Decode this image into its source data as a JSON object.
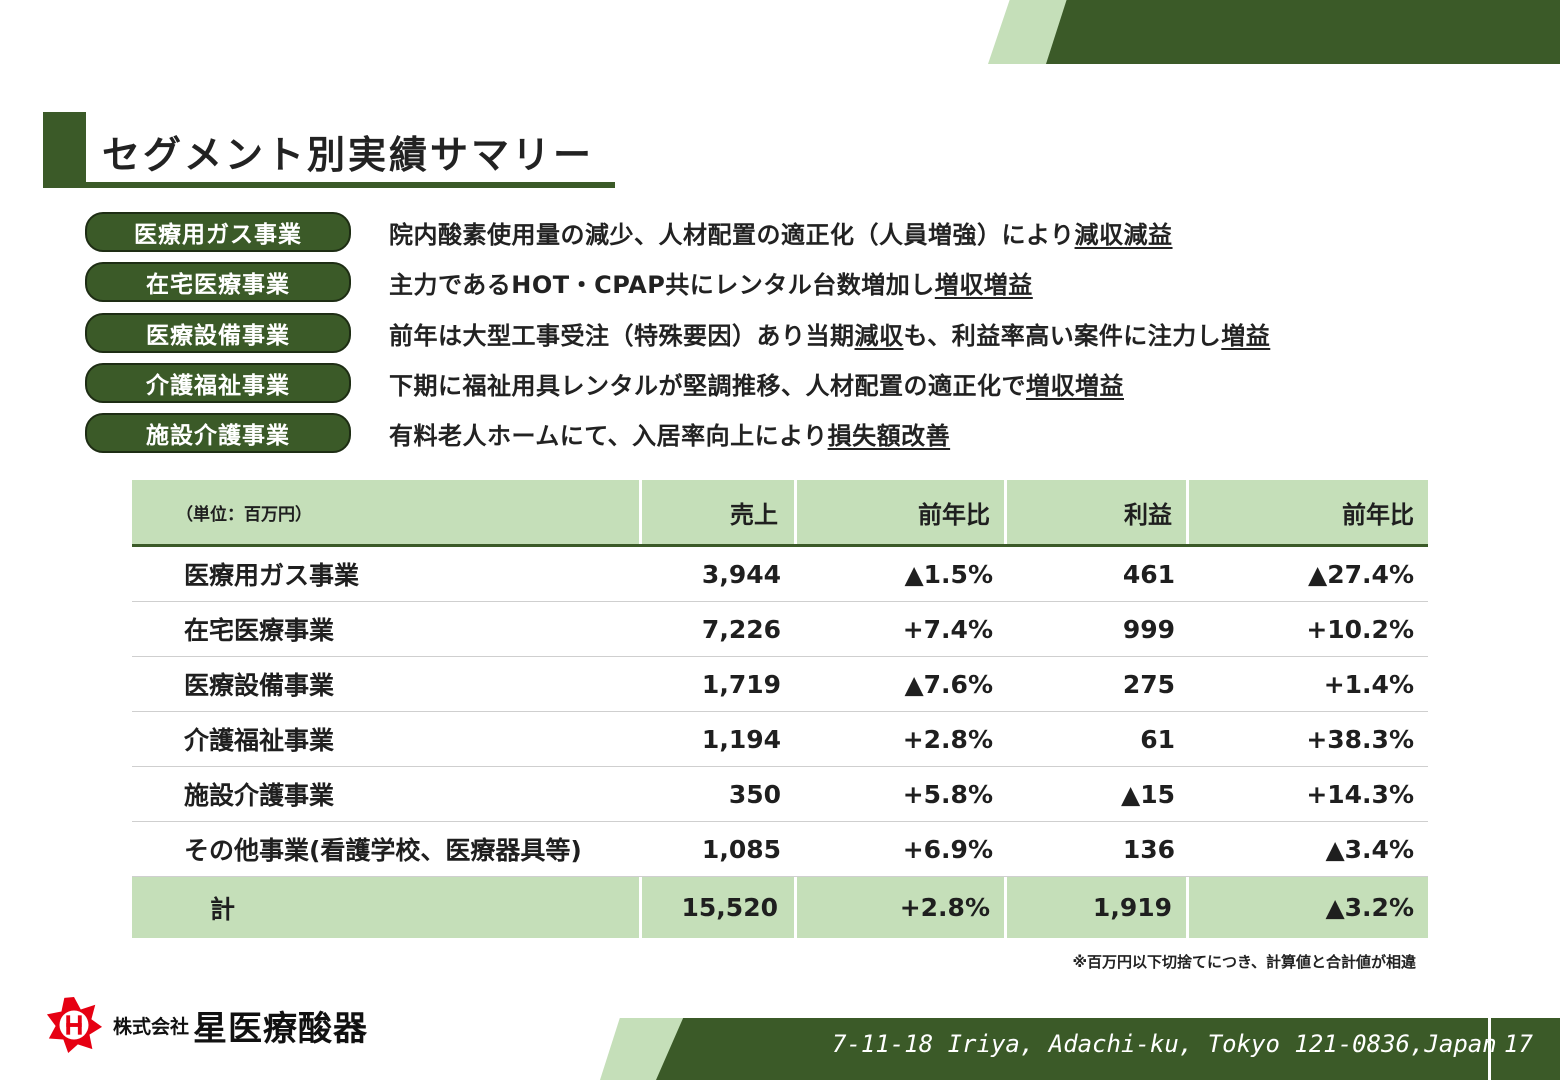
{
  "title": "セグメント別実績サマリー",
  "summary": [
    {
      "label": "医療用ガス事業",
      "text": "院内酸素使用量の減少、人材配置の適正化（人員増強）により",
      "highlight": "減収減益",
      "suffix": ""
    },
    {
      "label": "在宅医療事業",
      "text": "主力であるHOT・CPAP共にレンタル台数増加し",
      "highlight": "増収増益",
      "suffix": ""
    },
    {
      "label": "医療設備事業",
      "text": "前年は大型工事受注（特殊要因）あり当期",
      "highlight": "減収",
      "suffix": "も、利益率高い案件に注力し",
      "highlight2": "増益"
    },
    {
      "label": "介護福祉事業",
      "text": "下期に福祉用具レンタルが堅調推移、人材配置の適正化で",
      "highlight": "増収増益",
      "suffix": ""
    },
    {
      "label": "施設介護事業",
      "text": "有料老人ホームにて、入居率向上により",
      "highlight": "損失額改善",
      "suffix": ""
    }
  ],
  "table": {
    "unit": "（単位：百万円）",
    "headers": [
      "売上",
      "前年比",
      "利益",
      "前年比"
    ],
    "rows": [
      {
        "name": "医療用ガス事業",
        "sales": "3,944",
        "sales_yoy": "▲1.5%",
        "profit": "461",
        "profit_yoy": "▲27.4%"
      },
      {
        "name": "在宅医療事業",
        "sales": "7,226",
        "sales_yoy": "+7.4%",
        "profit": "999",
        "profit_yoy": "+10.2%"
      },
      {
        "name": "医療設備事業",
        "sales": "1,719",
        "sales_yoy": "▲7.6%",
        "profit": "275",
        "profit_yoy": "+1.4%"
      },
      {
        "name": "介護福祉事業",
        "sales": "1,194",
        "sales_yoy": "+2.8%",
        "profit": "61",
        "profit_yoy": "+38.3%"
      },
      {
        "name": "施設介護事業",
        "sales": "350",
        "sales_yoy": "+5.8%",
        "profit": "▲15",
        "profit_yoy": "+14.3%"
      },
      {
        "name": "その他事業(看護学校、医療器具等)",
        "sales": "1,085",
        "sales_yoy": "+6.9%",
        "profit": "136",
        "profit_yoy": "▲3.4%"
      }
    ],
    "total": {
      "name": "計",
      "sales": "15,520",
      "sales_yoy": "+2.8%",
      "profit": "1,919",
      "profit_yoy": "▲3.2%"
    }
  },
  "note": "※百万円以下切捨てにつき、計算値と合計値が相違",
  "footer": {
    "company_prefix": "株式会社",
    "company_name": "星医療酸器",
    "logo_letter": "H",
    "address": "7-11-18 Iriya, Adachi-ku, Tokyo 121-0836,Japan",
    "page": "17"
  },
  "colors": {
    "dark_green": "#3b5a28",
    "light_green": "#c5dfb9",
    "logo_red": "#e60012"
  }
}
